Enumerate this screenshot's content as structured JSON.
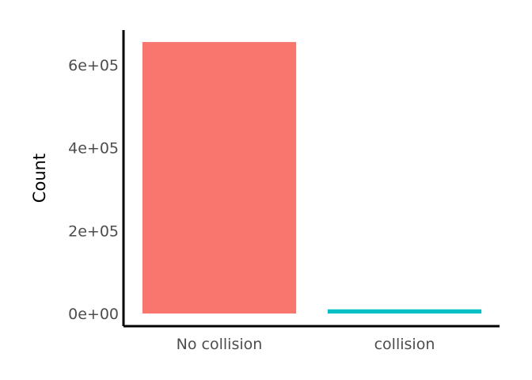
{
  "chart_data": {
    "type": "bar",
    "categories": [
      "No collision",
      "collision"
    ],
    "values": [
      655000,
      10000
    ],
    "title": "",
    "xlabel": "",
    "ylabel": "Count",
    "ylim": [
      0,
      680000
    ],
    "yticks": [
      0,
      200000,
      400000,
      600000
    ],
    "ytick_labels": [
      "0e+00",
      "2e+05",
      "4e+05",
      "6e+05"
    ],
    "colors": [
      "#F8766D",
      "#00BFC4"
    ],
    "grid": false,
    "legend": "none"
  }
}
